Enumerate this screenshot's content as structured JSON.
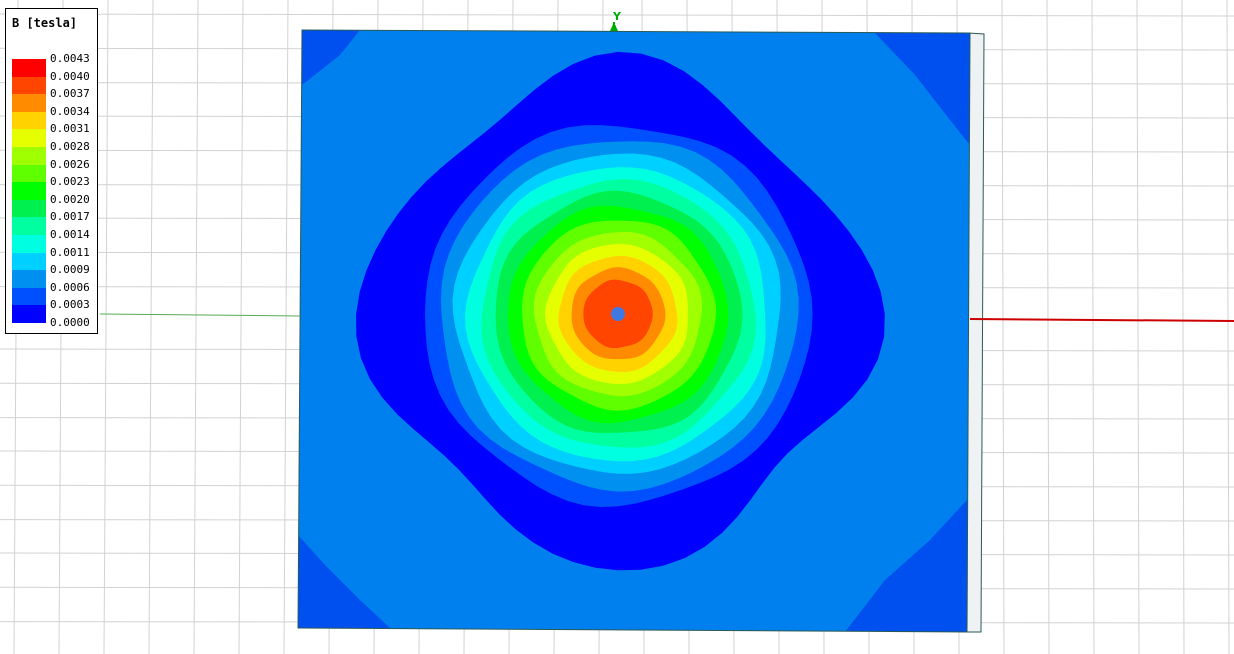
{
  "legend": {
    "title": "B [tesla]",
    "values": [
      "0.0043",
      "0.0040",
      "0.0037",
      "0.0034",
      "0.0031",
      "0.0028",
      "0.0026",
      "0.0023",
      "0.0020",
      "0.0017",
      "0.0014",
      "0.0011",
      "0.0009",
      "0.0006",
      "0.0003",
      "0.0000"
    ],
    "colors": [
      "#ff0000",
      "#ff4500",
      "#ff8c00",
      "#ffd200",
      "#e6ff00",
      "#a0ff00",
      "#60ff00",
      "#00ff00",
      "#00f050",
      "#00ffa0",
      "#00ffe0",
      "#00d0ff",
      "#0090f0",
      "#0050ff",
      "#0000ff"
    ]
  },
  "axis": {
    "y_label": "Y"
  },
  "plot": {
    "background_color": "#0080ee",
    "corner_color": "#0050ef",
    "outer_ring_color": "#0000ff"
  }
}
